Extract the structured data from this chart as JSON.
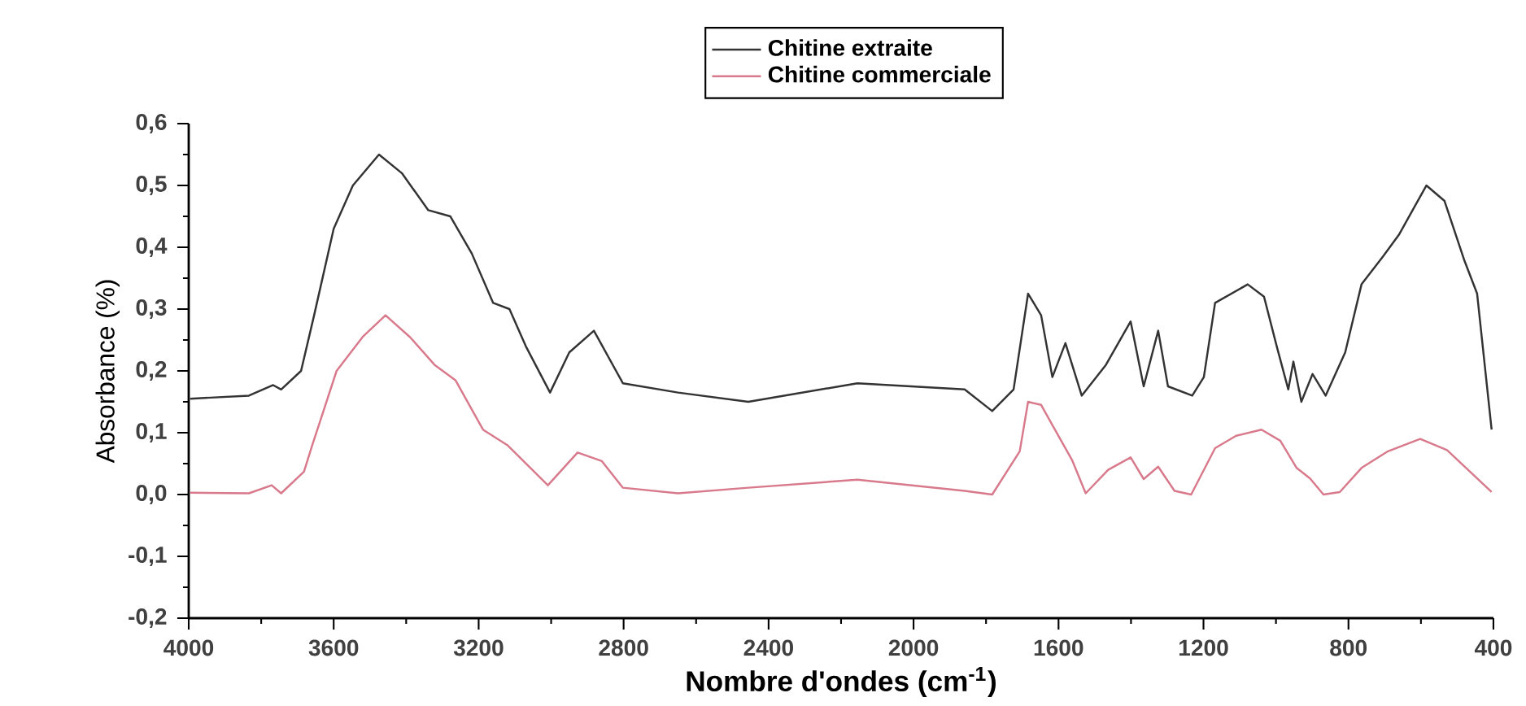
{
  "chart_data": {
    "type": "line",
    "xlabel": "Nombre d'ondes (cm$^{-1}$)",
    "ylabel": "Absorbance (%)",
    "legend": "top",
    "xlim": [
      4000,
      400
    ],
    "ylim": [
      -0.2,
      0.6
    ],
    "xticks": [
      4000,
      3600,
      3200,
      2800,
      2400,
      2000,
      1600,
      1200,
      800,
      400
    ],
    "yticks": [
      {
        "value": -0.2,
        "label": "-0,2"
      },
      {
        "value": -0.1,
        "label": "-0,1"
      },
      {
        "value": 0,
        "label": "0,0"
      },
      {
        "value": 0.1,
        "label": "0,1"
      },
      {
        "value": 0.2,
        "label": "0,2"
      },
      {
        "value": 0.3,
        "label": "0,3"
      },
      {
        "value": 0.4,
        "label": "0,4"
      },
      {
        "value": 0.5,
        "label": "0,5"
      },
      {
        "value": 0.6,
        "label": "0,6"
      }
    ],
    "series": [
      {
        "name": "Chitine extraite",
        "color": "#333333",
        "x": [
          3996,
          3834,
          3767,
          3745,
          3690,
          3654,
          3600,
          3547,
          3475,
          3412,
          3339,
          3278,
          3219,
          3160,
          3115,
          3070,
          3003,
          2950,
          2882,
          2802,
          2650,
          2456,
          2155,
          1859,
          1783,
          1724,
          1684,
          1648,
          1617,
          1581,
          1536,
          1469,
          1401,
          1365,
          1325,
          1298,
          1231,
          1199,
          1168,
          1078,
          1033,
          998,
          966,
          952,
          930,
          899,
          863,
          809,
          764,
          705,
          661,
          585,
          535,
          481,
          445,
          405
        ],
        "values": [
          0.155,
          0.16,
          0.177,
          0.17,
          0.2,
          0.29,
          0.43,
          0.5,
          0.55,
          0.52,
          0.46,
          0.45,
          0.39,
          0.31,
          0.3,
          0.24,
          0.165,
          0.23,
          0.265,
          0.18,
          0.165,
          0.15,
          0.18,
          0.17,
          0.135,
          0.17,
          0.325,
          0.29,
          0.19,
          0.245,
          0.16,
          0.21,
          0.28,
          0.175,
          0.265,
          0.175,
          0.16,
          0.19,
          0.31,
          0.34,
          0.32,
          0.24,
          0.17,
          0.215,
          0.15,
          0.195,
          0.16,
          0.23,
          0.34,
          0.385,
          0.42,
          0.5,
          0.475,
          0.38,
          0.325,
          0.105
        ]
      },
      {
        "name": "Chitine commerciale",
        "color": "#d87a8c",
        "x": [
          3996,
          3834,
          3771,
          3745,
          3682,
          3659,
          3592,
          3520,
          3457,
          3390,
          3322,
          3264,
          3188,
          3121,
          3009,
          2927,
          2860,
          2802,
          2650,
          2456,
          2155,
          1859,
          1783,
          1707,
          1684,
          1648,
          1610,
          1562,
          1525,
          1463,
          1401,
          1365,
          1325,
          1280,
          1234,
          1168,
          1110,
          1040,
          988,
          943,
          906,
          869,
          824,
          764,
          691,
          602,
          528,
          405
        ],
        "values": [
          0.003,
          0.002,
          0.015,
          0.002,
          0.037,
          0.08,
          0.2,
          0.255,
          0.29,
          0.255,
          0.21,
          0.185,
          0.105,
          0.08,
          0.015,
          0.068,
          0.054,
          0.011,
          0.002,
          0.011,
          0.024,
          0.006,
          0.0,
          0.07,
          0.15,
          0.145,
          0.105,
          0.055,
          0.002,
          0.04,
          0.06,
          0.025,
          0.045,
          0.006,
          0.0,
          0.075,
          0.095,
          0.105,
          0.087,
          0.043,
          0.026,
          0.0,
          0.004,
          0.043,
          0.07,
          0.09,
          0.072,
          0.004
        ]
      }
    ]
  }
}
